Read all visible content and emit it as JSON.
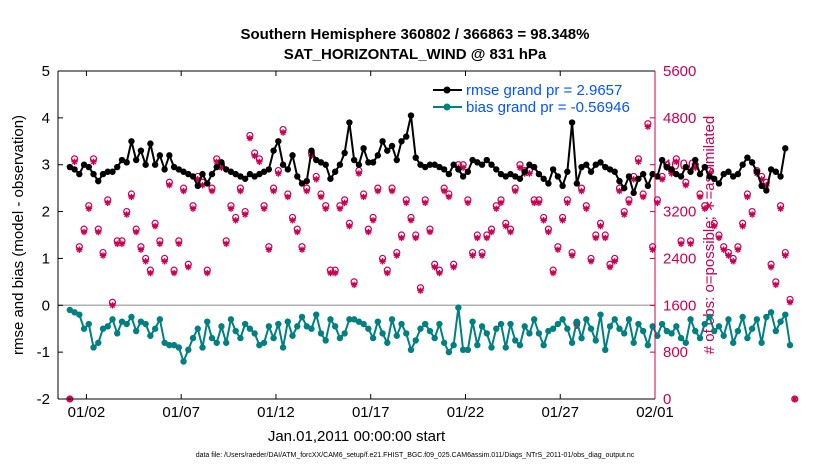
{
  "chart_data": {
    "type": "line",
    "title": "Southern Hemisphere 360802 / 366863 = 98.348%",
    "subtitle": "SAT_HORIZONTAL_WIND @ 831 hPa",
    "xlabel": "Jan.01,2011 00:00:00 start",
    "ylabel": "rmse and bias (model - observation)",
    "y2label": "# of obs: o=possible; ∗=assimilated",
    "footnote": "data file: /Users/raeder/DAI/ATM_forcXX/CAM6_setup/f.e21.FHIST_BGC.f09_025.CAM6assim.011/Diags_NTrS_2011-01/obs_diag_output.nc",
    "x_range": [
      0.5,
      32.0
    ],
    "ylim": [
      -2,
      5
    ],
    "y2lim": [
      0,
      5600
    ],
    "yticks": [
      "-2",
      "-1",
      "0",
      "1",
      "2",
      "3",
      "4",
      "5"
    ],
    "y2ticks": [
      "0",
      "800",
      "1600",
      "2400",
      "3200",
      "4000",
      "4800",
      "5600"
    ],
    "xticks": [
      {
        "day": 2,
        "label": "01/02"
      },
      {
        "day": 7,
        "label": "01/07"
      },
      {
        "day": 12,
        "label": "01/12"
      },
      {
        "day": 17,
        "label": "01/17"
      },
      {
        "day": 22,
        "label": "01/22"
      },
      {
        "day": 27,
        "label": "01/27"
      },
      {
        "day": 32,
        "label": "02/01"
      }
    ],
    "legend": {
      "position": "top-right",
      "entries": [
        {
          "label": "rmse grand pr = 2.9657",
          "color": "#000000"
        },
        {
          "label": "bias grand pr = -0.56946",
          "color": "#008080"
        }
      ]
    },
    "colors": {
      "rmse": "#000000",
      "bias": "#008080",
      "obs": "#cc0052",
      "text": "#0055ff",
      "zero": "#b0b0b0"
    },
    "x_start": 1.125,
    "x_step": 0.25,
    "series": [
      {
        "name": "rmse",
        "values": [
          2.95,
          2.9,
          2.8,
          3.0,
          2.95,
          2.8,
          2.65,
          2.8,
          2.85,
          2.85,
          2.95,
          3.1,
          3.05,
          3.5,
          3.1,
          3.3,
          3.0,
          3.45,
          3.0,
          3.2,
          2.9,
          3.2,
          2.95,
          2.9,
          2.85,
          2.8,
          2.75,
          2.55,
          2.8,
          2.6,
          2.8,
          2.95,
          3.05,
          2.9,
          2.85,
          2.8,
          2.75,
          2.7,
          2.8,
          2.75,
          2.8,
          2.85,
          2.9,
          3.3,
          3.5,
          3.0,
          2.9,
          3.2,
          2.75,
          2.6,
          2.65,
          3.3,
          3.1,
          3.05,
          3.0,
          2.7,
          2.85,
          3.0,
          3.25,
          3.9,
          3.1,
          3.0,
          3.35,
          3.05,
          3.05,
          3.2,
          3.5,
          3.3,
          3.4,
          3.1,
          3.5,
          3.6,
          4.05,
          3.15,
          3.0,
          2.95,
          3.0,
          3.0,
          2.95,
          2.9,
          2.8,
          3.0,
          2.9,
          2.75,
          2.85,
          3.1,
          3.05,
          3.0,
          3.1,
          3.0,
          2.9,
          2.8,
          2.75,
          2.8,
          2.75,
          2.7,
          2.85,
          3.0,
          2.95,
          2.8,
          2.7,
          2.6,
          2.9,
          2.75,
          2.55,
          2.85,
          3.9,
          2.6,
          2.95,
          3.0,
          2.85,
          3.0,
          3.05,
          2.95,
          2.9,
          2.85,
          2.65,
          2.5,
          2.75,
          2.4,
          2.7,
          2.8,
          2.55,
          2.8,
          2.75,
          3.1,
          2.95,
          2.9,
          2.8,
          2.75,
          2.95,
          2.85,
          3.1,
          2.8,
          2.95,
          2.75,
          2.7,
          2.6,
          2.8,
          2.85,
          2.75,
          2.8,
          3.0,
          3.15,
          3.05,
          2.85,
          2.55,
          2.45,
          2.9,
          2.85,
          2.75,
          3.35
        ]
      },
      {
        "name": "bias",
        "values": [
          -0.1,
          -0.15,
          -0.2,
          -0.5,
          -0.4,
          -0.9,
          -0.8,
          -0.5,
          -0.45,
          -0.3,
          -0.6,
          -0.35,
          -0.4,
          -0.25,
          -0.55,
          -0.35,
          -0.4,
          -0.65,
          -0.5,
          -0.3,
          -0.8,
          -0.85,
          -0.85,
          -0.9,
          -1.2,
          -0.95,
          -0.7,
          -0.5,
          -0.9,
          -0.35,
          -0.7,
          -0.8,
          -0.45,
          -0.8,
          -0.3,
          -0.55,
          -0.7,
          -0.4,
          -0.5,
          -0.6,
          -0.85,
          -0.8,
          -0.45,
          -0.7,
          -0.4,
          -0.9,
          -0.35,
          -0.65,
          -0.45,
          -0.25,
          -0.45,
          -0.5,
          -0.2,
          -0.6,
          -0.75,
          -0.3,
          -0.45,
          -0.7,
          -0.6,
          -0.3,
          -0.3,
          -0.35,
          -0.4,
          -0.5,
          -0.7,
          -0.35,
          -0.6,
          -0.8,
          -0.3,
          -0.65,
          -0.4,
          -0.6,
          -0.95,
          -0.75,
          -0.5,
          -0.4,
          -0.55,
          -0.7,
          -0.4,
          -0.8,
          -1.0,
          -0.85,
          -0.05,
          -0.95,
          -0.95,
          -0.35,
          -0.85,
          -0.45,
          -0.6,
          -0.9,
          -0.5,
          -0.4,
          -0.9,
          -0.4,
          -0.75,
          -0.85,
          -0.45,
          -0.6,
          -0.3,
          -0.6,
          -0.85,
          -0.55,
          -0.5,
          -0.4,
          -0.3,
          -0.5,
          -0.8,
          -0.35,
          -0.7,
          -0.3,
          -0.5,
          -0.75,
          -0.2,
          -0.95,
          -0.45,
          -0.3,
          -0.5,
          -0.6,
          -0.3,
          -0.8,
          -0.4,
          -0.55,
          -0.85,
          -0.45,
          -0.65,
          -0.4,
          -0.55,
          -0.6,
          -0.45,
          -0.7,
          -0.8,
          -0.3,
          -0.55,
          -0.7,
          -0.4,
          -0.25,
          -0.55,
          -0.45,
          -0.65,
          -0.3,
          -0.8,
          -0.55,
          -0.25,
          -0.7,
          -0.5,
          -0.3,
          -0.8,
          -0.25,
          -0.15,
          -0.55,
          -0.35,
          -0.2,
          -0.85
        ]
      },
      {
        "name": "obs_possible",
        "values": [
          0,
          4100,
          2600,
          2900,
          3300,
          4100,
          2900,
          2500,
          3400,
          1650,
          2700,
          2700,
          3200,
          3500,
          2900,
          2600,
          2400,
          2200,
          3000,
          2700,
          2400,
          3700,
          2200,
          2700,
          3600,
          2300,
          3300,
          3800,
          3700,
          2200,
          3600,
          4100,
          4000,
          2700,
          3300,
          3100,
          3600,
          3200,
          4500,
          4200,
          4100,
          3300,
          2600,
          3600,
          3900,
          4600,
          3500,
          3100,
          2900,
          2600,
          3600,
          4200,
          3800,
          3500,
          3300,
          2200,
          2200,
          3300,
          3400,
          3000,
          2000,
          3900,
          3500,
          2900,
          3100,
          3600,
          2400,
          2200,
          3600,
          2500,
          2800,
          3400,
          3100,
          2800,
          1900,
          3400,
          2900,
          2300,
          2200,
          3600,
          3500,
          2300,
          4000,
          4000,
          3400,
          2500,
          2800,
          2500,
          2800,
          2900,
          3300,
          3400,
          3000,
          2900,
          3600,
          4000,
          3900,
          3900,
          3400,
          3400,
          3100,
          2900,
          2200,
          2600,
          3100,
          3400,
          2500,
          1300,
          3600,
          3300,
          2400,
          2800,
          3000,
          2800,
          2300,
          2400,
          3600,
          3200,
          3400,
          3800,
          4100,
          3500,
          4700,
          2600,
          3400,
          3800,
          4000,
          3900,
          4100,
          2700,
          3700,
          2700,
          4000,
          3500,
          3300,
          3900,
          3000,
          2800,
          2600,
          2500,
          2400,
          2600,
          3000,
          3500,
          3200,
          3900,
          3800,
          3700,
          2300,
          2000,
          3300,
          2500,
          1700,
          0
        ]
      },
      {
        "name": "obs_assimilated",
        "values": [
          0,
          4050,
          2550,
          2850,
          3250,
          4050,
          2850,
          2450,
          3350,
          1600,
          2650,
          2650,
          3150,
          3450,
          2850,
          2550,
          2350,
          2150,
          2950,
          2650,
          2350,
          3650,
          2150,
          2650,
          3550,
          2250,
          3250,
          3750,
          3650,
          2150,
          3550,
          4050,
          3950,
          2650,
          3250,
          3050,
          3550,
          3150,
          4450,
          4150,
          4050,
          3250,
          2550,
          3550,
          3850,
          4550,
          3450,
          3050,
          2850,
          2550,
          3550,
          4150,
          3750,
          3450,
          3250,
          2150,
          2150,
          3250,
          3350,
          2950,
          1950,
          3850,
          3450,
          2850,
          3050,
          3550,
          2350,
          2150,
          3550,
          2450,
          2750,
          3350,
          3050,
          2750,
          1850,
          3350,
          2850,
          2250,
          2150,
          3550,
          3450,
          2250,
          3950,
          3950,
          3350,
          2450,
          2750,
          2450,
          2750,
          2850,
          3250,
          3350,
          2950,
          2850,
          3550,
          3950,
          3850,
          3850,
          3350,
          3350,
          3050,
          2850,
          2150,
          2550,
          3050,
          3350,
          2450,
          1250,
          3550,
          3250,
          2350,
          2750,
          2950,
          2750,
          2250,
          2350,
          3550,
          3150,
          3350,
          3750,
          4050,
          3450,
          4650,
          2550,
          3350,
          3750,
          3950,
          3850,
          4050,
          2650,
          3650,
          2650,
          3950,
          3450,
          3250,
          3850,
          2950,
          2750,
          2550,
          2450,
          2350,
          2550,
          2950,
          3450,
          3150,
          3850,
          3750,
          3650,
          2250,
          1950,
          3250,
          2450,
          1650,
          0
        ]
      }
    ]
  }
}
